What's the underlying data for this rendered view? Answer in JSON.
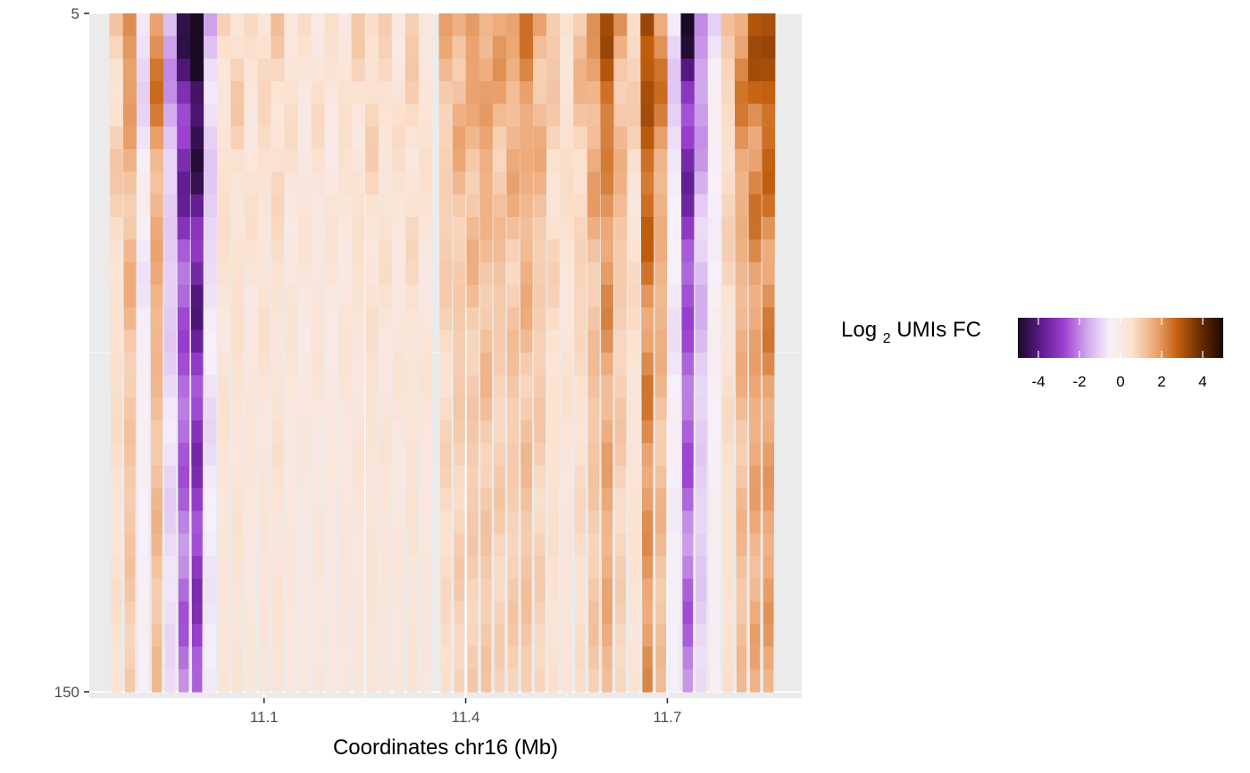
{
  "chart_data": {
    "type": "heatmap",
    "title": "",
    "xlabel": "Coordinates chr16 (Mb)",
    "ylabel": "",
    "x_ticks": [
      {
        "value": 11.1,
        "label": "11.1"
      },
      {
        "value": 11.4,
        "label": "11.4"
      },
      {
        "value": 11.7,
        "label": "11.7"
      }
    ],
    "y_ticks": [
      {
        "value": 5,
        "label": "5"
      },
      {
        "value": 150,
        "label": "150"
      }
    ],
    "xlim": [
      10.84,
      11.9
    ],
    "ylim": [
      5,
      150
    ],
    "y_reversed": true,
    "grid": true,
    "legend": {
      "title_main": "Log",
      "title_sub": "2",
      "title_rest": " UMIs FC",
      "placement": "right",
      "range": [
        -5,
        5
      ],
      "ticks": [
        {
          "value": -4,
          "label": "-4"
        },
        {
          "value": -2,
          "label": "-2"
        },
        {
          "value": 0,
          "label": "0"
        },
        {
          "value": 2,
          "label": "2"
        },
        {
          "value": 4,
          "label": "4"
        }
      ],
      "colors": [
        "#1a0a24",
        "#5c1a8c",
        "#9a3fd0",
        "#cfa5ec",
        "#f7f0fb",
        "#fbe2d0",
        "#eda877",
        "#c4600e",
        "#6a2c00",
        "#1a0800"
      ]
    },
    "panel_background": "#ebebeb",
    "regions": [
      {
        "x_start": 10.87,
        "x_end": 11.35,
        "depth_top": 5,
        "depth_bottom": 150,
        "profile": [
          {
            "x": 10.88,
            "fc": 0.6
          },
          {
            "x": 10.9,
            "fc": 1.2
          },
          {
            "x": 10.92,
            "fc": -0.5
          },
          {
            "x": 10.94,
            "fc": 1.4
          },
          {
            "x": 10.96,
            "fc": -1.0
          },
          {
            "x": 10.98,
            "fc": -2.6
          },
          {
            "x": 11.0,
            "fc": -3.4
          },
          {
            "x": 11.02,
            "fc": -0.8
          },
          {
            "x": 11.04,
            "fc": 0.4
          },
          {
            "x": 11.06,
            "fc": 0.5
          },
          {
            "x": 11.08,
            "fc": 0.3
          },
          {
            "x": 11.1,
            "fc": 0.4
          },
          {
            "x": 11.12,
            "fc": 0.5
          },
          {
            "x": 11.14,
            "fc": 0.3
          },
          {
            "x": 11.16,
            "fc": 0.2
          },
          {
            "x": 11.18,
            "fc": 0.3
          },
          {
            "x": 11.2,
            "fc": 0.2
          },
          {
            "x": 11.22,
            "fc": 0.3
          },
          {
            "x": 11.24,
            "fc": 0.4
          },
          {
            "x": 11.26,
            "fc": 0.5
          },
          {
            "x": 11.28,
            "fc": 0.4
          },
          {
            "x": 11.3,
            "fc": 0.3
          },
          {
            "x": 11.32,
            "fc": 0.5
          },
          {
            "x": 11.34,
            "fc": 0.3
          }
        ]
      },
      {
        "x_start": 11.36,
        "x_end": 11.86,
        "depth_top": 5,
        "depth_bottom": 150,
        "profile": [
          {
            "x": 11.37,
            "fc": 0.8
          },
          {
            "x": 11.39,
            "fc": 1.0
          },
          {
            "x": 11.41,
            "fc": 1.1
          },
          {
            "x": 11.43,
            "fc": 1.2
          },
          {
            "x": 11.45,
            "fc": 1.0
          },
          {
            "x": 11.47,
            "fc": 1.1
          },
          {
            "x": 11.49,
            "fc": 1.3
          },
          {
            "x": 11.51,
            "fc": 1.0
          },
          {
            "x": 11.53,
            "fc": 0.6
          },
          {
            "x": 11.55,
            "fc": 0.4
          },
          {
            "x": 11.57,
            "fc": 0.7
          },
          {
            "x": 11.59,
            "fc": 1.2
          },
          {
            "x": 11.61,
            "fc": 1.8
          },
          {
            "x": 11.63,
            "fc": 1.0
          },
          {
            "x": 11.65,
            "fc": 0.5
          },
          {
            "x": 11.67,
            "fc": 2.2
          },
          {
            "x": 11.69,
            "fc": 1.4
          },
          {
            "x": 11.71,
            "fc": -0.6
          },
          {
            "x": 11.73,
            "fc": -2.6
          },
          {
            "x": 11.75,
            "fc": -1.2
          },
          {
            "x": 11.77,
            "fc": -0.4
          },
          {
            "x": 11.79,
            "fc": 0.6
          },
          {
            "x": 11.81,
            "fc": 1.4
          },
          {
            "x": 11.83,
            "fc": 1.8
          },
          {
            "x": 11.85,
            "fc": 2.0
          }
        ]
      }
    ]
  }
}
